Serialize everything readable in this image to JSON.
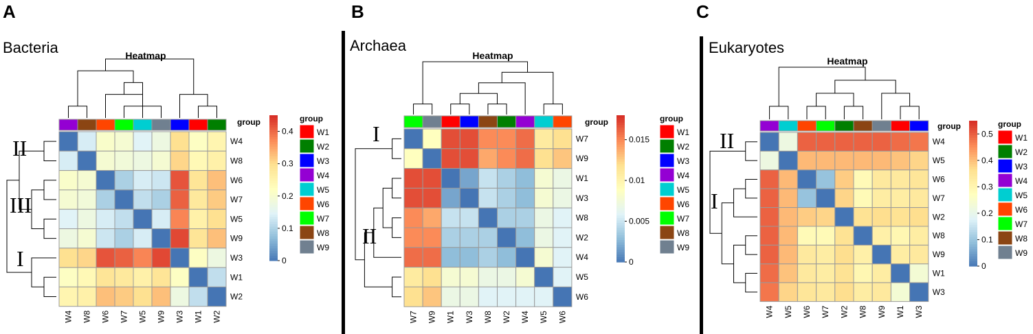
{
  "group_colors": {
    "W1": "#FF0000",
    "W2": "#007F00",
    "W3": "#0000FF",
    "W4": "#9400D3",
    "W5": "#00CED1",
    "W6": "#FF4500",
    "W7": "#00FF00",
    "W8": "#8B4513",
    "W9": "#708090"
  },
  "legend_labels": [
    "W1",
    "W2",
    "W3",
    "W4",
    "W5",
    "W6",
    "W7",
    "W8",
    "W9"
  ],
  "chart_data": [
    {
      "type": "heatmap",
      "panel": "A",
      "title": "Bacteria",
      "heatmap_title": "Heatmap",
      "group_label": "group",
      "legend_title": "group",
      "cols": [
        "W4",
        "W8",
        "W6",
        "W7",
        "W5",
        "W9",
        "W3",
        "W1",
        "W2"
      ],
      "rows": [
        "W4",
        "W8",
        "W6",
        "W7",
        "W5",
        "W9",
        "W3",
        "W1",
        "W2"
      ],
      "values": [
        [
          0.0,
          0.14,
          0.21,
          0.2,
          0.15,
          0.18,
          0.3,
          0.22,
          0.25
        ],
        [
          0.14,
          0.0,
          0.2,
          0.19,
          0.18,
          0.2,
          0.31,
          0.24,
          0.26
        ],
        [
          0.21,
          0.2,
          0.0,
          0.1,
          0.14,
          0.13,
          0.42,
          0.29,
          0.33
        ],
        [
          0.2,
          0.19,
          0.1,
          0.0,
          0.12,
          0.1,
          0.41,
          0.28,
          0.32
        ],
        [
          0.15,
          0.18,
          0.14,
          0.12,
          0.0,
          0.14,
          0.38,
          0.26,
          0.3
        ],
        [
          0.18,
          0.2,
          0.13,
          0.1,
          0.14,
          0.0,
          0.43,
          0.29,
          0.33
        ],
        [
          0.3,
          0.31,
          0.42,
          0.41,
          0.38,
          0.43,
          0.0,
          0.22,
          0.18
        ],
        [
          0.22,
          0.24,
          0.29,
          0.28,
          0.26,
          0.29,
          0.22,
          0.0,
          0.12
        ],
        [
          0.25,
          0.26,
          0.33,
          0.32,
          0.3,
          0.33,
          0.18,
          0.12,
          0.0
        ]
      ],
      "scale_max": 0.45,
      "colorbar_ticks": [
        0,
        0.1,
        0.2,
        0.3,
        0.4
      ],
      "colorbar_tick_labels": [
        "0",
        "0.1",
        "0.2",
        "0.3",
        "0.4"
      ],
      "cluster_labels": [
        "II",
        "III",
        "I"
      ],
      "col_tree": [
        [
          [
            0,
            1
          ],
          [
            [
              2,
              [
                3,
                5
              ]
            ],
            4
          ]
        ],
        [
          6,
          [
            7,
            8
          ]
        ]
      ],
      "row_tree": [
        [
          [
            0,
            1
          ],
          [
            [
              2,
              3
            ],
            [
              4,
              5
            ]
          ]
        ],
        [
          6,
          [
            7,
            8
          ]
        ]
      ]
    },
    {
      "type": "heatmap",
      "panel": "B",
      "title": "Archaea",
      "heatmap_title": "Heatmap",
      "group_label": "group",
      "legend_title": "group",
      "cols": [
        "W7",
        "W9",
        "W1",
        "W3",
        "W8",
        "W2",
        "W4",
        "W5",
        "W6"
      ],
      "rows": [
        "W7",
        "W9",
        "W1",
        "W3",
        "W8",
        "W2",
        "W4",
        "W5",
        "W6"
      ],
      "values": [
        [
          0.0,
          0.009,
          0.017,
          0.017,
          0.015,
          0.015,
          0.016,
          0.011,
          0.012
        ],
        [
          0.009,
          0.0,
          0.017,
          0.017,
          0.014,
          0.015,
          0.016,
          0.012,
          0.013
        ],
        [
          0.017,
          0.017,
          0.0,
          0.002,
          0.005,
          0.004,
          0.003,
          0.008,
          0.007
        ],
        [
          0.017,
          0.017,
          0.002,
          0.0,
          0.005,
          0.004,
          0.003,
          0.008,
          0.007
        ],
        [
          0.015,
          0.014,
          0.005,
          0.005,
          0.0,
          0.004,
          0.004,
          0.007,
          0.006
        ],
        [
          0.015,
          0.015,
          0.004,
          0.004,
          0.004,
          0.0,
          0.003,
          0.007,
          0.006
        ],
        [
          0.016,
          0.016,
          0.003,
          0.003,
          0.004,
          0.003,
          0.0,
          0.008,
          0.006
        ],
        [
          0.011,
          0.012,
          0.008,
          0.008,
          0.007,
          0.007,
          0.008,
          0.0,
          0.006
        ],
        [
          0.012,
          0.013,
          0.007,
          0.007,
          0.006,
          0.006,
          0.006,
          0.006,
          0.0
        ]
      ],
      "scale_max": 0.018,
      "colorbar_ticks": [
        0,
        0.005,
        0.01,
        0.015
      ],
      "colorbar_tick_labels": [
        "0",
        "0.005",
        "0.01",
        "0.015"
      ],
      "cluster_labels": [
        "I",
        "II"
      ],
      "col_tree": [
        [
          0,
          1
        ],
        [
          [
            [
              [
                2,
                3
              ],
              [
                4,
                5
              ]
            ],
            6
          ],
          [
            7,
            8
          ]
        ]
      ],
      "row_tree": [
        [
          0,
          1
        ],
        [
          [
            [
              [
                2,
                3
              ],
              [
                4,
                5
              ]
            ],
            6
          ],
          [
            7,
            8
          ]
        ]
      ]
    },
    {
      "type": "heatmap",
      "panel": "C",
      "title": "Eukaryotes",
      "heatmap_title": "Heatmap",
      "group_label": "group",
      "legend_title": "group",
      "cols": [
        "W4",
        "W5",
        "W6",
        "W7",
        "W2",
        "W8",
        "W9",
        "W1",
        "W3"
      ],
      "rows": [
        "W4",
        "W5",
        "W6",
        "W7",
        "W2",
        "W8",
        "W9",
        "W1",
        "W3"
      ],
      "values": [
        [
          0.0,
          0.22,
          0.5,
          0.5,
          0.5,
          0.5,
          0.5,
          0.49,
          0.48
        ],
        [
          0.22,
          0.0,
          0.41,
          0.41,
          0.41,
          0.41,
          0.41,
          0.4,
          0.38
        ],
        [
          0.5,
          0.41,
          0.0,
          0.1,
          0.39,
          0.29,
          0.34,
          0.34,
          0.35
        ],
        [
          0.5,
          0.41,
          0.1,
          0.0,
          0.38,
          0.29,
          0.33,
          0.33,
          0.34
        ],
        [
          0.5,
          0.41,
          0.39,
          0.38,
          0.0,
          0.36,
          0.37,
          0.36,
          0.37
        ],
        [
          0.5,
          0.41,
          0.29,
          0.29,
          0.36,
          0.0,
          0.32,
          0.3,
          0.33
        ],
        [
          0.5,
          0.41,
          0.34,
          0.33,
          0.37,
          0.32,
          0.0,
          0.33,
          0.34
        ],
        [
          0.49,
          0.4,
          0.34,
          0.33,
          0.36,
          0.3,
          0.33,
          0.0,
          0.24
        ],
        [
          0.48,
          0.38,
          0.35,
          0.34,
          0.37,
          0.33,
          0.34,
          0.24,
          0.0
        ]
      ],
      "scale_max": 0.55,
      "colorbar_ticks": [
        0,
        0.1,
        0.2,
        0.3,
        0.4,
        0.5
      ],
      "colorbar_tick_labels": [
        "0",
        "0.1",
        "0.2",
        "0.3",
        "0.4",
        "0.5"
      ],
      "cluster_labels": [
        "II",
        "I"
      ],
      "col_tree": [
        [
          0,
          1
        ],
        [
          [
            [
              2,
              3
            ],
            [
              4,
              5
            ]
          ],
          [
            6,
            [
              7,
              8
            ]
          ]
        ]
      ],
      "row_tree": [
        [
          0,
          1
        ],
        [
          [
            [
              2,
              3
            ],
            4
          ],
          [
            [
              5,
              6
            ],
            [
              7,
              8
            ]
          ]
        ]
      ]
    }
  ]
}
